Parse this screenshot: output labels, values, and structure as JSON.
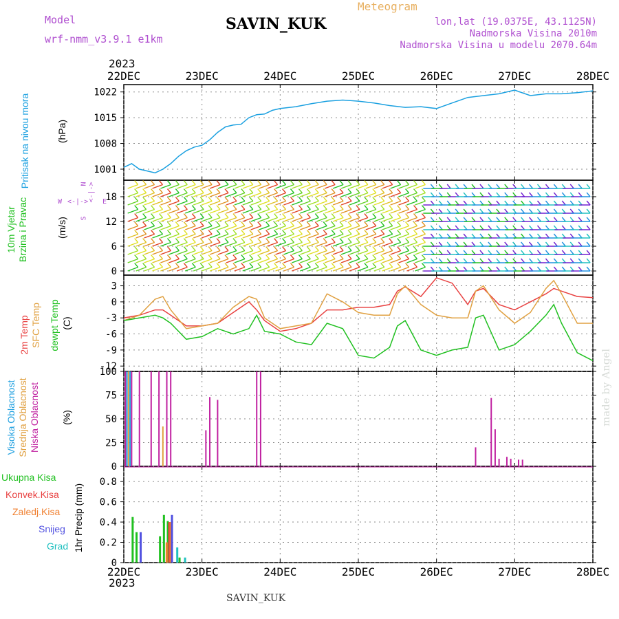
{
  "header": {
    "model_label": "Model",
    "model_version": "wrf-nmm_v3.9.1 e1km",
    "title": "SAVIN_KUK",
    "meteogram": "Meteogram",
    "lonlat": "lon,lat (19.0375E, 43.1125N)",
    "elevation": "Nadmorska Visina 2010m",
    "model_elevation": "Nadmorska Visina u modelu 2070.64m",
    "year_top": "2023",
    "year_bottom": "2023",
    "footer": "SAVIN_KUK",
    "credit": "made by Angel"
  },
  "compass": {
    "north": "N",
    "west": "W",
    "east": "E",
    "south": "S"
  },
  "colors": {
    "pressure": "#1aa0e0",
    "wind_label": "#20c020",
    "temp2m": "#e84040",
    "sfc": "#e0a040",
    "dewpt": "#20c020",
    "high_cloud": "#20a0e0",
    "mid_cloud": "#e0a040",
    "low_cloud": "#c020a0",
    "total_precip": "#20c020",
    "conv_precip": "#e84040",
    "frz_precip": "#f08030",
    "snow": "#5050e0",
    "graupel": "#20c0c0"
  },
  "chart_data": [
    {
      "type": "line",
      "panel": "pressure",
      "title": "",
      "ylabel_name": "Pritisak na nivou mora",
      "ylabel_unit": "(hPa)",
      "yticks": [
        "1022",
        "1015",
        "1008",
        "1001"
      ],
      "ylim": [
        998,
        1024
      ],
      "x": [
        22.0,
        22.1,
        22.2,
        22.3,
        22.4,
        22.5,
        22.6,
        22.7,
        22.8,
        22.9,
        23.0,
        23.1,
        23.2,
        23.3,
        23.4,
        23.5,
        23.6,
        23.7,
        23.8,
        23.9,
        24.0,
        24.2,
        24.4,
        24.6,
        24.8,
        25.0,
        25.2,
        25.4,
        25.6,
        25.8,
        26.0,
        26.2,
        26.4,
        26.6,
        26.8,
        27.0,
        27.2,
        27.4,
        27.6,
        27.8,
        28.0
      ],
      "values": [
        1001.5,
        1002.5,
        1001,
        1000.5,
        1000,
        1001,
        1002.5,
        1004.5,
        1006,
        1007,
        1007.5,
        1009,
        1011,
        1012.5,
        1013,
        1013.2,
        1015,
        1015.8,
        1016,
        1017,
        1017.5,
        1018,
        1018.8,
        1019.5,
        1019.8,
        1019.5,
        1019,
        1018.3,
        1017.8,
        1018,
        1017.5,
        1019,
        1020.5,
        1021,
        1021.5,
        1022.5,
        1021,
        1021.5,
        1021.5,
        1021.8,
        1022.3
      ],
      "series": [
        {
          "name": "",
          "color": "#1aa0e0"
        }
      ]
    },
    {
      "type": "wind_barbs",
      "panel": "wind",
      "ylabel_name": "10m Vjetar Brzina i Pravac",
      "ylabel_unit": "(m/s)",
      "yticks": [
        "18",
        "12",
        "6",
        "0"
      ],
      "ylim": [
        -1,
        22
      ]
    },
    {
      "type": "line",
      "panel": "temperature",
      "ylabel_names": [
        "2m Temp",
        "SFC Temp",
        "dewpt Temp"
      ],
      "ylabel_unit": "(C)",
      "yticks": [
        "3",
        "0",
        "-3",
        "-6",
        "-9",
        "-12"
      ],
      "ylim": [
        -13,
        5
      ],
      "x": [
        22.0,
        22.2,
        22.4,
        22.5,
        22.6,
        22.8,
        23.0,
        23.2,
        23.4,
        23.6,
        23.7,
        23.8,
        24.0,
        24.2,
        24.4,
        24.6,
        24.8,
        25.0,
        25.2,
        25.4,
        25.5,
        25.6,
        25.8,
        26.0,
        26.2,
        26.4,
        26.5,
        26.6,
        26.8,
        27.0,
        27.2,
        27.4,
        27.5,
        27.6,
        27.8,
        28.0
      ],
      "series": [
        {
          "name": "2m Temp",
          "values": [
            -3,
            -2.5,
            -1.5,
            -1.5,
            -2.5,
            -4.5,
            -4.5,
            -4,
            -2,
            0,
            -1.5,
            -3.5,
            -5.5,
            -5,
            -4,
            -1.5,
            -1.5,
            -1,
            -1,
            -0.5,
            2,
            2.8,
            1,
            4.5,
            3.5,
            -0.5,
            2,
            2.5,
            -0.5,
            -1.5,
            0,
            1.5,
            2.5,
            2,
            1,
            0.8
          ]
        },
        {
          "name": "SFC Temp",
          "values": [
            -3.5,
            -2.5,
            0.5,
            1,
            -1.5,
            -5,
            -4.5,
            -4,
            -1,
            1,
            0.5,
            -3,
            -5,
            -4.5,
            -4,
            1.5,
            0,
            -2,
            -2.5,
            -2.5,
            1.5,
            3,
            -0.5,
            -2.5,
            -3,
            -3,
            2,
            3,
            -1.5,
            -4,
            -2,
            2.5,
            4,
            1.5,
            -4,
            -4
          ]
        },
        {
          "name": "dewpt Temp",
          "values": [
            -3.5,
            -3,
            -2.5,
            -3,
            -4,
            -7,
            -6.5,
            -5,
            -6,
            -5,
            -2.5,
            -5.5,
            -6,
            -7.5,
            -8,
            -4,
            -5,
            -10,
            -10.5,
            -8.5,
            -4.5,
            -3.5,
            -9,
            -10,
            -9,
            -8.5,
            -3,
            -2.5,
            -9,
            -8,
            -5.5,
            -2.5,
            -0.5,
            -4,
            -9.5,
            -11
          ]
        }
      ]
    },
    {
      "type": "bar",
      "panel": "cloud",
      "ylabel_names": [
        "Visoka Oblacnost",
        "Srednja Oblacnost",
        "Niska Oblacnost"
      ],
      "ylabel_unit": "(%)",
      "yticks": [
        "100",
        "75",
        "50",
        "25",
        "0"
      ],
      "ylim": [
        0,
        100
      ],
      "series": [
        {
          "name": "Visoka Oblacnost",
          "x": [
            22.04,
            22.08
          ],
          "values": [
            100,
            100
          ]
        },
        {
          "name": "Srednja Oblacnost",
          "x": [
            22.06,
            22.5
          ],
          "values": [
            100,
            42
          ]
        },
        {
          "name": "Niska Oblacnost",
          "x": [
            22.02,
            22.1,
            22.2,
            22.35,
            22.45,
            22.55,
            22.6,
            23.05,
            23.1,
            23.2,
            23.7,
            23.75,
            26.5,
            26.7,
            26.75,
            26.8,
            26.9,
            26.95,
            27.05,
            27.1
          ],
          "values": [
            100,
            100,
            100,
            100,
            100,
            100,
            100,
            38,
            73,
            70,
            100,
            100,
            20,
            72,
            39,
            8,
            10,
            8,
            7,
            7
          ]
        }
      ]
    },
    {
      "type": "bar",
      "panel": "precip",
      "ylabel_names": [
        "Ukupna Kisa",
        "Konvek.Kisa",
        "Zaledj.Kisa",
        "Snijeg",
        "Grad"
      ],
      "ylabel_unit": "1hr Precip (mm)",
      "yticks": [
        "0.8",
        "0.6",
        "0.4",
        "0.2",
        "0"
      ],
      "ylim": [
        0,
        0.95
      ],
      "series": [
        {
          "name": "Ukupna Kisa",
          "x": [
            22.1,
            22.15,
            22.45,
            22.5,
            22.55,
            22.6,
            22.7
          ],
          "values": [
            0.45,
            0.3,
            0.26,
            0.47,
            0.41,
            0.17,
            0.05
          ]
        },
        {
          "name": "Konvek.Kisa",
          "x": [
            22.55
          ],
          "values": [
            0.4
          ]
        },
        {
          "name": "Zaledj.Kisa",
          "x": [
            22.5,
            22.55
          ],
          "values": [
            0.2,
            0.4
          ]
        },
        {
          "name": "Snijeg",
          "x": [
            22.15,
            22.55
          ],
          "values": [
            0.3,
            0.47
          ]
        },
        {
          "name": "Grad",
          "x": [
            22.6,
            22.7
          ],
          "values": [
            0.15,
            0.05
          ]
        }
      ]
    }
  ],
  "x_axis": {
    "labels": [
      "22DEC",
      "23DEC",
      "24DEC",
      "25DEC",
      "26DEC",
      "27DEC",
      "28DEC"
    ],
    "range": [
      22,
      28
    ]
  }
}
